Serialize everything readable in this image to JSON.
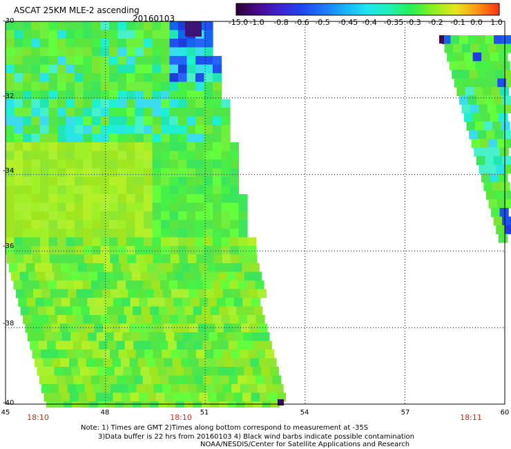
{
  "header": {
    "title": "ASCAT 25KM MLE-2 ascending",
    "date": "20160103"
  },
  "colorbar": {
    "labels": [
      "-15.0",
      "-1.0",
      "-0.8",
      "-0.6",
      "-0.5",
      "-0.45",
      "-0.4",
      "-0.35",
      "-0.3",
      "-0.2",
      "-0.1",
      "0.0",
      "1.0"
    ],
    "colors": [
      "#2a0033",
      "#4b0a8c",
      "#3c23d2",
      "#1e46f0",
      "#1e78ff",
      "#14b4ff",
      "#1ee6f0",
      "#1ef0b4",
      "#28f050",
      "#8cf01e",
      "#e6e61e",
      "#ff9614",
      "#ff3214"
    ]
  },
  "axes": {
    "y_ticks": [
      "-30",
      "-32",
      "-34",
      "-36",
      "-38",
      "-40"
    ],
    "x_ticks": [
      "45",
      "48",
      "51",
      "54",
      "57",
      "60"
    ],
    "time_labels": [
      "18:10",
      "18:10",
      "18:11"
    ]
  },
  "notes": {
    "line1": "Note: 1) Times are GMT 2)Times along bottom correspond to measurement at -35S",
    "line2": "3)Data buffer is 22 hrs from 20160103 4) Black wind barbs indicate possible contamination",
    "line3": "NOAA/NESDIS/Center for Satellite Applications and Research"
  },
  "map_data": {
    "swaths": [
      {
        "name": "left-swath",
        "region": "lon 45-53.3, lat -30 to -40"
      },
      {
        "name": "right-swath",
        "region": "lon 58.8-60, lat -30 to -36"
      }
    ]
  }
}
